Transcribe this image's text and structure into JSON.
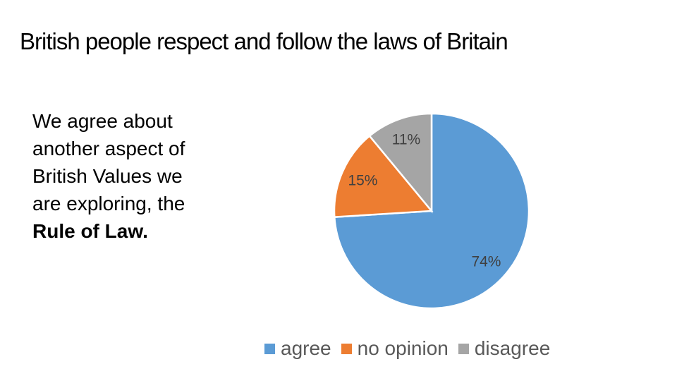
{
  "slide": {
    "title": "British people respect and follow the laws of Britain",
    "body": [
      "We agree about another aspect of British Values we are exploring, the",
      "Rule of Law."
    ]
  },
  "chart_data": {
    "type": "pie",
    "categories": [
      "agree",
      "no opinion",
      "disagree"
    ],
    "values": [
      74,
      15,
      11
    ],
    "value_labels": [
      "74%",
      "15%",
      "11%"
    ],
    "colors": [
      "#5b9bd5",
      "#ed7d31",
      "#a5a5a5"
    ]
  }
}
